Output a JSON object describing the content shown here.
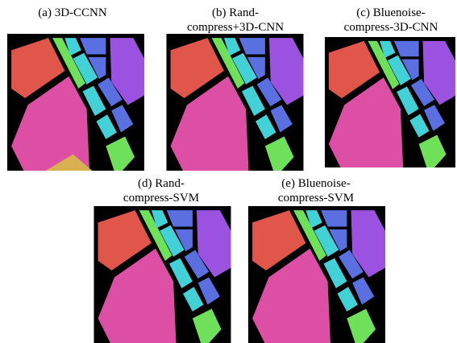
{
  "panels": [
    {
      "caption": [
        "(a) 3D-CCNN"
      ]
    },
    {
      "caption": [
        "(b) Rand-",
        "compress+3D-CNN"
      ]
    },
    {
      "caption": [
        "(c) Bluenoise-",
        "compress-3D-CNN"
      ]
    },
    {
      "caption": [
        "(d) Rand-",
        "compress-SVM"
      ]
    },
    {
      "caption": [
        "(e) Bluenoise-",
        "compress-SVM"
      ]
    }
  ]
}
